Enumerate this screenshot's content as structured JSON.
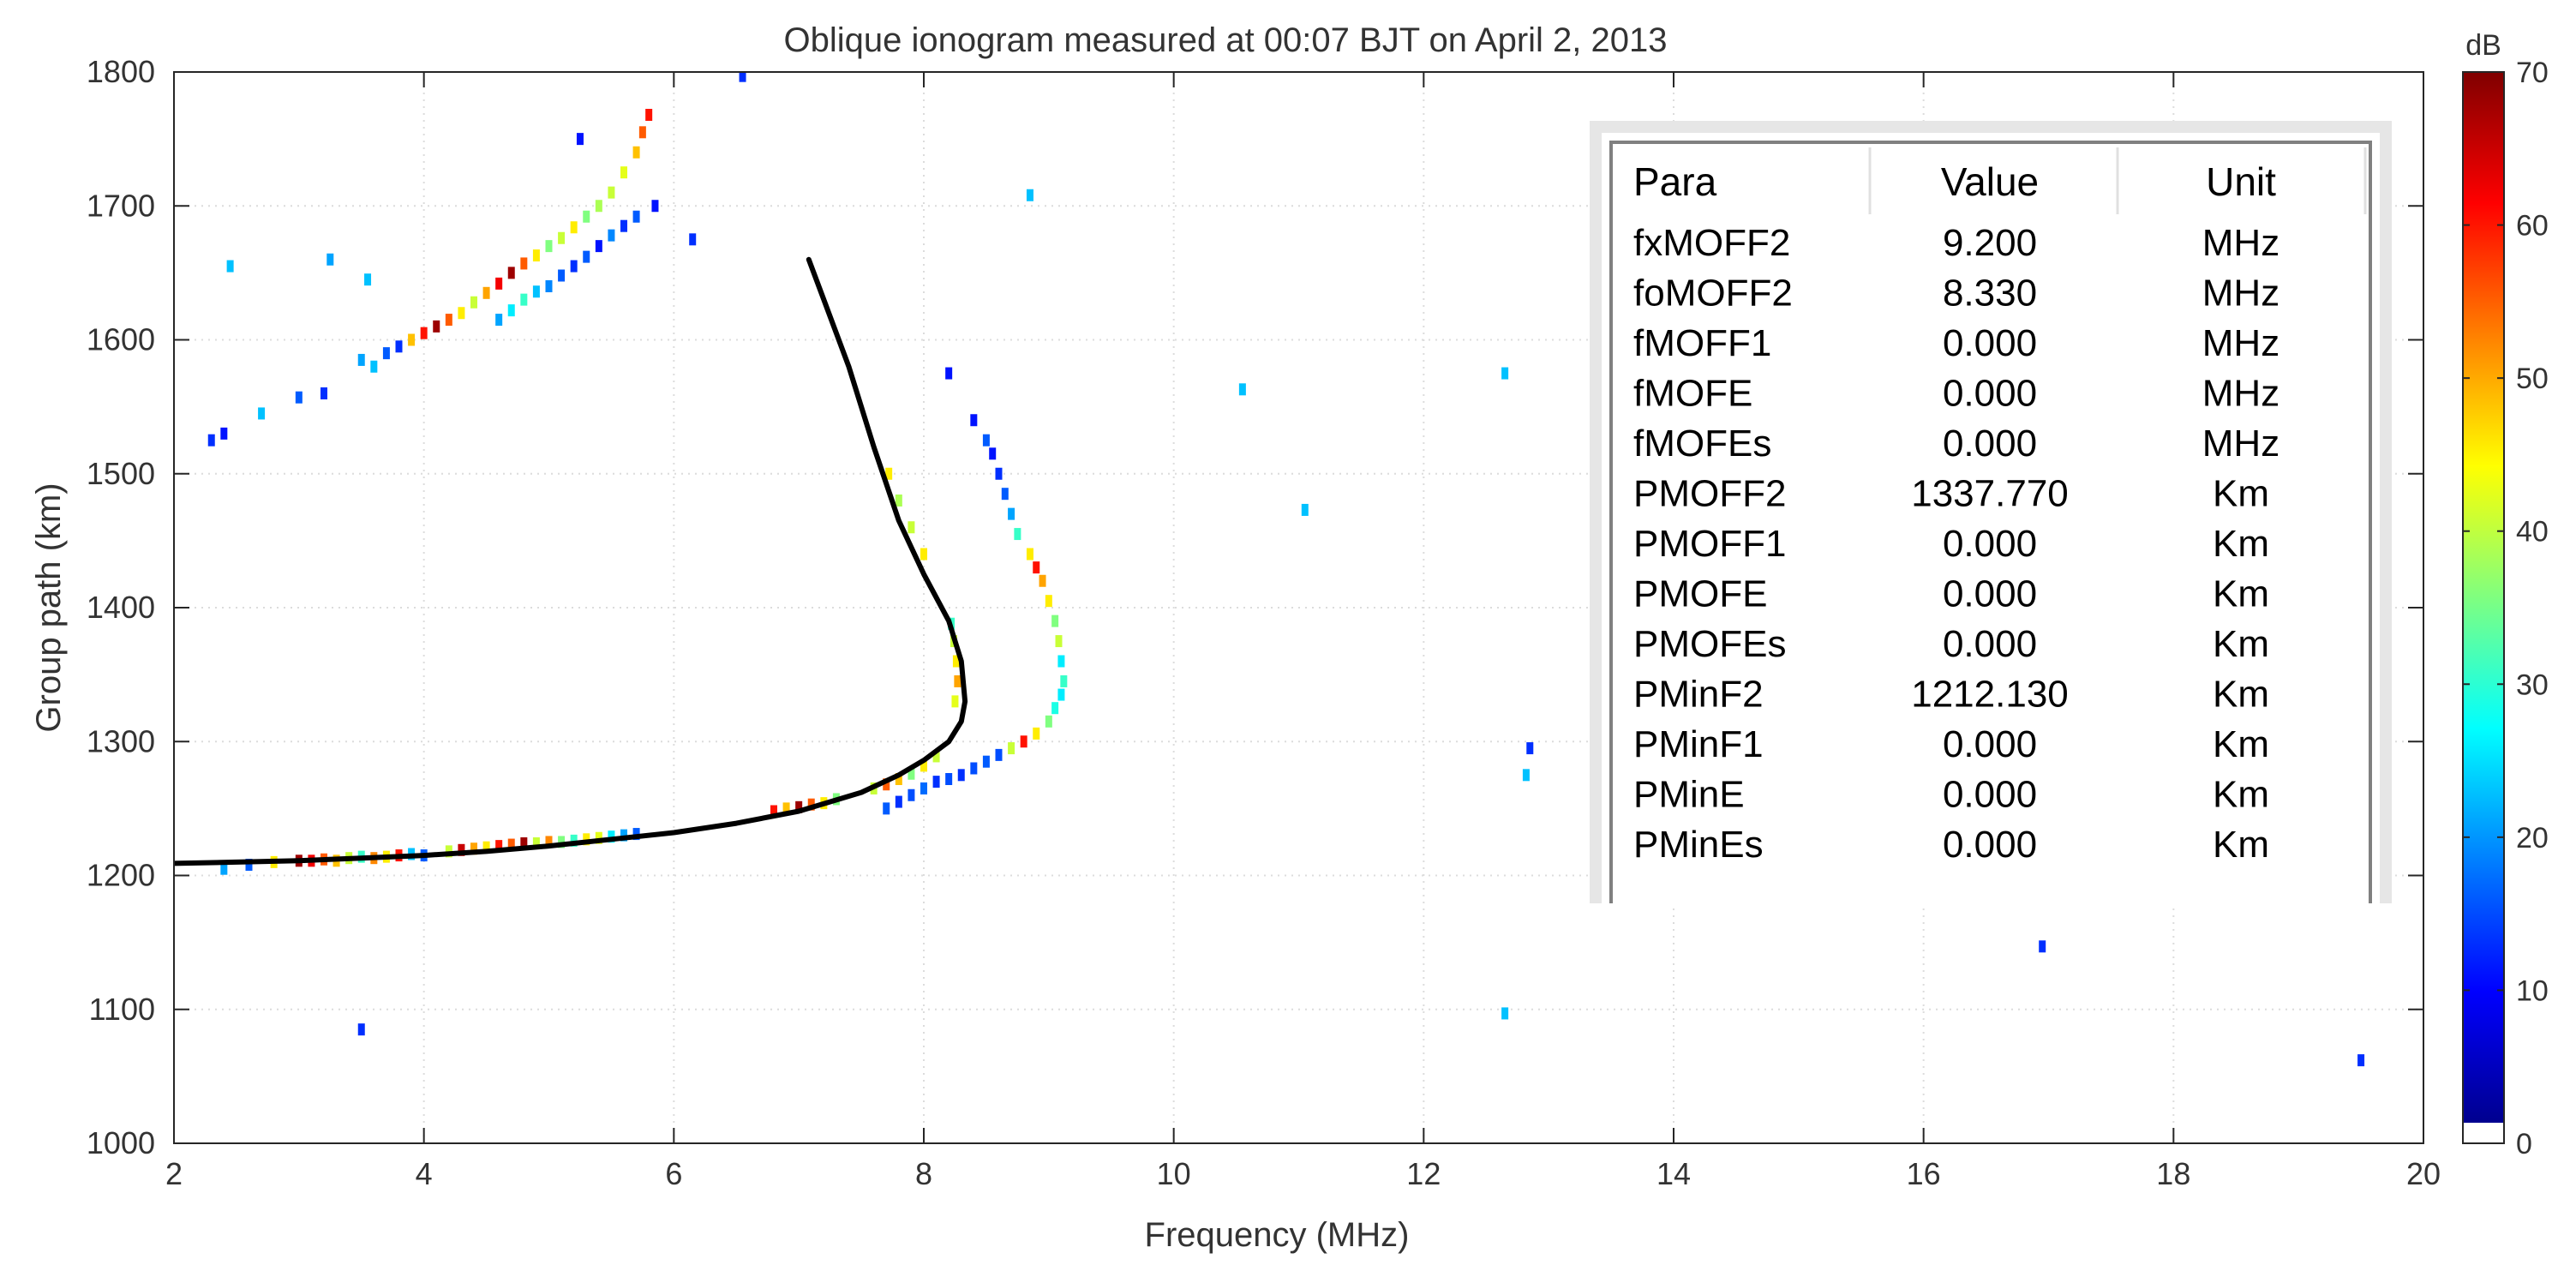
{
  "chart_data": {
    "type": "scatter",
    "title": "Oblique ionogram measured at 00:07 BJT on April 2, 2013",
    "xlabel": "Frequency (MHz)",
    "ylabel": "Group path (km)",
    "xlim": [
      2,
      20
    ],
    "ylim": [
      1000,
      1800
    ],
    "xticks": [
      2,
      4,
      6,
      8,
      10,
      12,
      14,
      16,
      18,
      20
    ],
    "yticks": [
      1000,
      1100,
      1200,
      1300,
      1400,
      1500,
      1600,
      1700,
      1800
    ],
    "grid": true,
    "colorbar": {
      "label": "dB",
      "range": [
        0,
        70
      ],
      "ticks": [
        0,
        10,
        20,
        30,
        40,
        50,
        60,
        70
      ],
      "colormap": "jet"
    },
    "fitted_trace": {
      "name": "fitted O-mode trace",
      "color": "#000000",
      "points": [
        [
          2.0,
          1209
        ],
        [
          2.5,
          1210
        ],
        [
          3.0,
          1211
        ],
        [
          3.5,
          1213
        ],
        [
          4.0,
          1215
        ],
        [
          4.5,
          1218
        ],
        [
          5.0,
          1222
        ],
        [
          5.5,
          1227
        ],
        [
          6.0,
          1232
        ],
        [
          6.5,
          1239
        ],
        [
          7.0,
          1248
        ],
        [
          7.5,
          1262
        ],
        [
          7.8,
          1275
        ],
        [
          8.0,
          1286
        ],
        [
          8.2,
          1300
        ],
        [
          8.3,
          1315
        ],
        [
          8.33,
          1330
        ],
        [
          8.3,
          1360
        ],
        [
          8.2,
          1390
        ],
        [
          8.0,
          1425
        ],
        [
          7.8,
          1465
        ],
        [
          7.6,
          1520
        ],
        [
          7.4,
          1580
        ],
        [
          7.2,
          1630
        ],
        [
          7.08,
          1660
        ]
      ]
    },
    "echo_traces": [
      {
        "name": "low-ray traces",
        "points": [
          [
            2.4,
            1205,
            20
          ],
          [
            2.6,
            1208,
            15
          ],
          [
            2.8,
            1210,
            45
          ],
          [
            3.0,
            1211,
            68
          ],
          [
            3.1,
            1211,
            62
          ],
          [
            3.2,
            1212,
            55
          ],
          [
            3.3,
            1211,
            48
          ],
          [
            3.4,
            1213,
            40
          ],
          [
            3.5,
            1214,
            30
          ],
          [
            3.6,
            1213,
            52
          ],
          [
            3.7,
            1214,
            45
          ],
          [
            3.8,
            1215,
            60
          ],
          [
            3.9,
            1216,
            22
          ],
          [
            4.0,
            1215,
            15
          ],
          [
            4.2,
            1218,
            40
          ],
          [
            4.3,
            1219,
            65
          ],
          [
            4.4,
            1220,
            50
          ],
          [
            4.5,
            1221,
            45
          ],
          [
            4.6,
            1222,
            60
          ],
          [
            4.7,
            1223,
            55
          ],
          [
            4.8,
            1224,
            68
          ],
          [
            4.9,
            1224,
            40
          ],
          [
            5.0,
            1225,
            52
          ],
          [
            5.1,
            1225,
            35
          ],
          [
            5.2,
            1226,
            30
          ],
          [
            5.3,
            1227,
            45
          ],
          [
            5.4,
            1228,
            42
          ],
          [
            5.5,
            1229,
            25
          ],
          [
            5.6,
            1230,
            20
          ],
          [
            5.7,
            1231,
            15
          ],
          [
            6.8,
            1248,
            60
          ],
          [
            6.9,
            1250,
            48
          ],
          [
            7.0,
            1251,
            68
          ],
          [
            7.1,
            1253,
            55
          ],
          [
            7.2,
            1254,
            45
          ],
          [
            7.3,
            1257,
            35
          ],
          [
            7.6,
            1265,
            40
          ],
          [
            7.7,
            1268,
            55
          ],
          [
            7.8,
            1272,
            48
          ],
          [
            7.9,
            1276,
            35
          ],
          [
            8.0,
            1282,
            45
          ],
          [
            8.1,
            1289,
            40
          ]
        ]
      },
      {
        "name": "o-mode high-ray",
        "points": [
          [
            8.25,
            1330,
            42
          ],
          [
            8.27,
            1345,
            50
          ],
          [
            8.26,
            1360,
            45
          ],
          [
            8.24,
            1375,
            40
          ],
          [
            8.22,
            1388,
            30
          ],
          [
            8.0,
            1440,
            45
          ],
          [
            7.9,
            1460,
            40
          ],
          [
            7.8,
            1480,
            38
          ],
          [
            7.72,
            1500,
            45
          ]
        ]
      },
      {
        "name": "x-mode trace",
        "points": [
          [
            7.7,
            1250,
            15
          ],
          [
            7.8,
            1255,
            12
          ],
          [
            7.9,
            1260,
            14
          ],
          [
            8.0,
            1265,
            16
          ],
          [
            8.1,
            1270,
            12
          ],
          [
            8.2,
            1272,
            14
          ],
          [
            8.3,
            1275,
            12
          ],
          [
            8.4,
            1280,
            14
          ],
          [
            8.5,
            1285,
            15
          ],
          [
            8.6,
            1290,
            14
          ],
          [
            8.7,
            1295,
            40
          ],
          [
            8.8,
            1300,
            60
          ],
          [
            8.9,
            1306,
            45
          ],
          [
            9.0,
            1315,
            35
          ],
          [
            9.05,
            1325,
            28
          ],
          [
            9.1,
            1335,
            25
          ],
          [
            9.12,
            1345,
            30
          ],
          [
            9.1,
            1360,
            25
          ],
          [
            9.08,
            1375,
            40
          ],
          [
            9.05,
            1390,
            35
          ],
          [
            9.0,
            1405,
            45
          ],
          [
            8.95,
            1420,
            50
          ],
          [
            8.9,
            1430,
            60
          ],
          [
            8.85,
            1440,
            45
          ],
          [
            8.75,
            1455,
            30
          ],
          [
            8.7,
            1470,
            20
          ],
          [
            8.65,
            1485,
            15
          ],
          [
            8.6,
            1500,
            12
          ],
          [
            8.55,
            1515,
            10
          ],
          [
            8.5,
            1525,
            15
          ],
          [
            8.4,
            1540,
            10
          ]
        ]
      },
      {
        "name": "multi-hop trace upper",
        "points": [
          [
            3.6,
            1580,
            22
          ],
          [
            3.7,
            1590,
            15
          ],
          [
            3.8,
            1595,
            12
          ],
          [
            3.9,
            1600,
            48
          ],
          [
            4.0,
            1605,
            60
          ],
          [
            4.1,
            1610,
            68
          ],
          [
            4.2,
            1615,
            55
          ],
          [
            4.3,
            1620,
            45
          ],
          [
            4.4,
            1628,
            40
          ],
          [
            4.5,
            1635,
            50
          ],
          [
            4.6,
            1642,
            62
          ],
          [
            4.7,
            1650,
            68
          ],
          [
            4.8,
            1657,
            55
          ],
          [
            4.9,
            1663,
            45
          ],
          [
            5.0,
            1670,
            35
          ],
          [
            5.1,
            1676,
            40
          ],
          [
            5.2,
            1684,
            45
          ],
          [
            5.3,
            1692,
            35
          ],
          [
            5.4,
            1700,
            38
          ],
          [
            5.5,
            1710,
            40
          ],
          [
            5.6,
            1725,
            42
          ],
          [
            5.7,
            1740,
            48
          ],
          [
            5.75,
            1755,
            55
          ],
          [
            5.8,
            1768,
            60
          ]
        ]
      },
      {
        "name": "multi-hop trace lower",
        "points": [
          [
            4.6,
            1615,
            20
          ],
          [
            4.7,
            1622,
            25
          ],
          [
            4.8,
            1630,
            30
          ],
          [
            4.9,
            1636,
            22
          ],
          [
            5.0,
            1640,
            18
          ],
          [
            5.1,
            1648,
            15
          ],
          [
            5.2,
            1655,
            12
          ],
          [
            5.3,
            1662,
            15
          ],
          [
            5.4,
            1670,
            10
          ],
          [
            5.5,
            1678,
            18
          ],
          [
            5.6,
            1685,
            12
          ],
          [
            5.7,
            1692,
            15
          ],
          [
            5.85,
            1700,
            10
          ]
        ]
      },
      {
        "name": "isolated echoes",
        "points": [
          [
            2.3,
            1525,
            12
          ],
          [
            2.4,
            1530,
            10
          ],
          [
            2.45,
            1655,
            22
          ],
          [
            2.7,
            1545,
            22
          ],
          [
            3.0,
            1557,
            15
          ],
          [
            3.2,
            1560,
            12
          ],
          [
            3.25,
            1660,
            20
          ],
          [
            3.55,
            1645,
            22
          ],
          [
            3.5,
            1585,
            20
          ],
          [
            3.5,
            1085,
            12
          ],
          [
            5.25,
            1750,
            10
          ],
          [
            6.15,
            1675,
            12
          ],
          [
            6.55,
            1797,
            12
          ],
          [
            8.2,
            1575,
            10
          ],
          [
            8.85,
            1708,
            22
          ],
          [
            10.55,
            1563,
            22
          ],
          [
            11.05,
            1473,
            22
          ],
          [
            12.65,
            1575,
            22
          ],
          [
            12.65,
            1097,
            22
          ],
          [
            12.85,
            1295,
            12
          ],
          [
            12.82,
            1275,
            22
          ],
          [
            16.95,
            1147,
            12
          ],
          [
            19.5,
            1062,
            12
          ]
        ]
      }
    ],
    "table": {
      "headers": [
        "Para",
        "Value",
        "Unit"
      ],
      "rows": [
        [
          "fxMOFF2",
          "9.200",
          "MHz"
        ],
        [
          "foMOFF2",
          "8.330",
          "MHz"
        ],
        [
          "fMOFF1",
          "0.000",
          "MHz"
        ],
        [
          "fMOFE",
          "0.000",
          "MHz"
        ],
        [
          "fMOFEs",
          "0.000",
          "MHz"
        ],
        [
          "PMOFF2",
          "1337.770",
          "Km"
        ],
        [
          "PMOFF1",
          "0.000",
          "Km"
        ],
        [
          "PMOFE",
          "0.000",
          "Km"
        ],
        [
          "PMOFEs",
          "0.000",
          "Km"
        ],
        [
          "PMinF2",
          "1212.130",
          "Km"
        ],
        [
          "PMinF1",
          "0.000",
          "Km"
        ],
        [
          "PMinE",
          "0.000",
          "Km"
        ],
        [
          "PMinEs",
          "0.000",
          "Km"
        ]
      ]
    }
  }
}
